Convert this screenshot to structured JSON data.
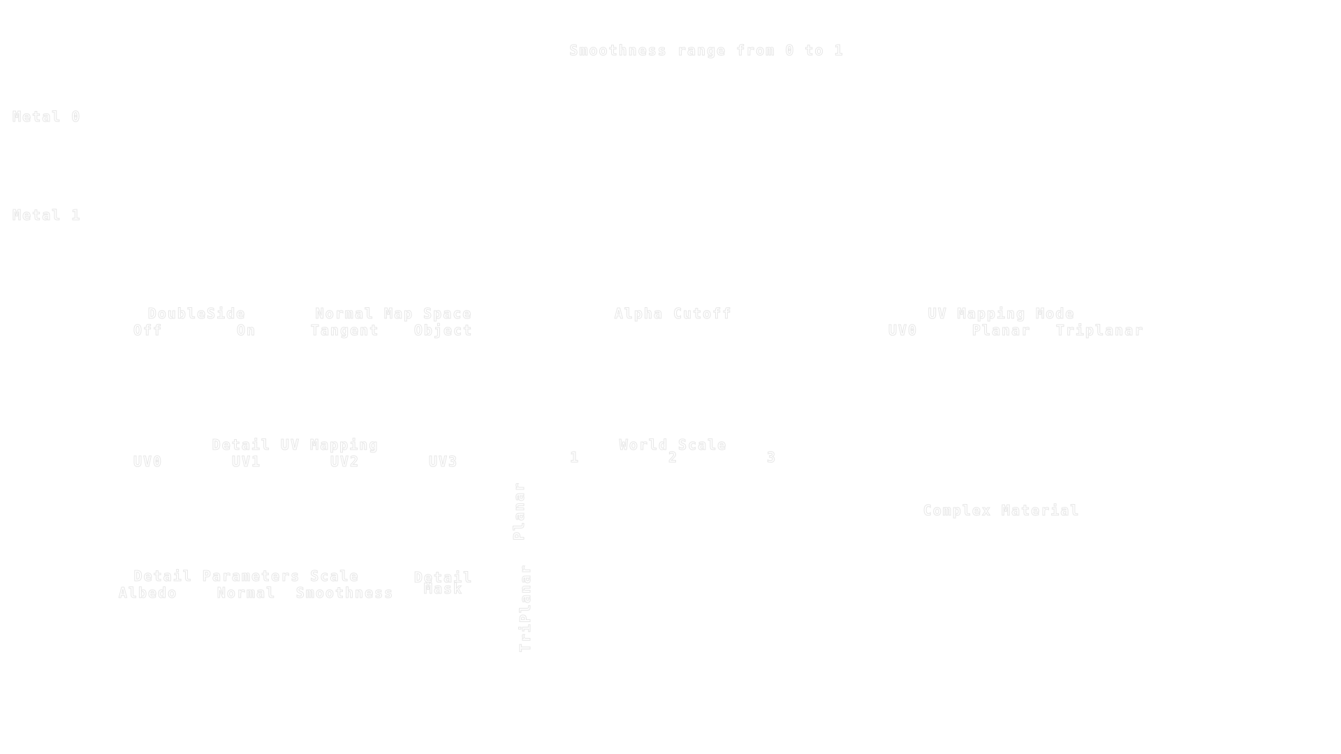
{
  "scene_title": "Smoothness range from 0 to 1",
  "rows": {
    "metal0": "Metal 0",
    "metal1": "Metal 1"
  },
  "double_side": {
    "title": "DoubleSide",
    "options": [
      "Off",
      "On"
    ]
  },
  "normal_map_space": {
    "title": "Normal Map Space",
    "options": [
      "Tangent",
      "Object"
    ]
  },
  "alpha_cutoff": {
    "title": "Alpha Cutoff"
  },
  "uv_mapping_mode": {
    "title": "UV Mapping Mode",
    "options": [
      "UV0",
      "Planar",
      "Triplanar"
    ]
  },
  "detail_uv_mapping": {
    "title": "Detail UV Mapping",
    "options": [
      "UV0",
      "UV1",
      "UV2",
      "UV3"
    ]
  },
  "world_scale": {
    "title": "World Scale",
    "options": [
      "1",
      "2",
      "3"
    ]
  },
  "vertical": {
    "planar": "Planar",
    "triplanar": "TriPlanar"
  },
  "complex_material": "Complex Material",
  "detail_parameters_scale": {
    "title": "Detail Parameters Scale",
    "options": [
      "Albedo",
      "Normal",
      "Smoothness"
    ]
  },
  "detail_mask": {
    "line1": "Detail",
    "line2": "Mask"
  },
  "colors": {
    "background": "#ffffff",
    "text_outline": "#e7e7e7"
  }
}
